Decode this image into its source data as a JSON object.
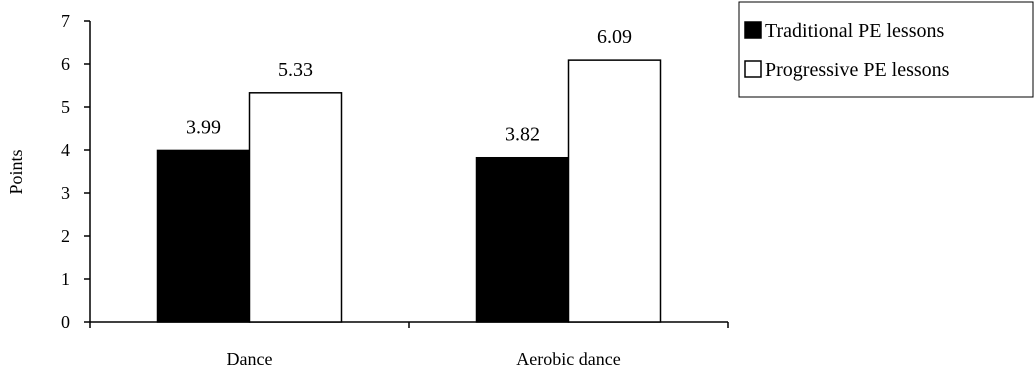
{
  "chart_data": {
    "type": "bar",
    "categories": [
      "Dance",
      "Aerobic dance"
    ],
    "series": [
      {
        "name": "Traditional PE lessons",
        "values": [
          3.99,
          3.82
        ],
        "color": "#000000"
      },
      {
        "name": "Progressive PE lessons",
        "values": [
          5.33,
          6.09
        ],
        "color": "#ffffff"
      }
    ],
    "data_labels": [
      [
        "3.99",
        "3.82"
      ],
      [
        "5.33",
        "6.09"
      ]
    ],
    "ylabel": "Points",
    "xlabel": "",
    "ylim": [
      0,
      7
    ],
    "yticks": [
      "0",
      "1",
      "2",
      "3",
      "4",
      "5",
      "6",
      "7"
    ],
    "grid": false,
    "legend_position": "top-right"
  }
}
